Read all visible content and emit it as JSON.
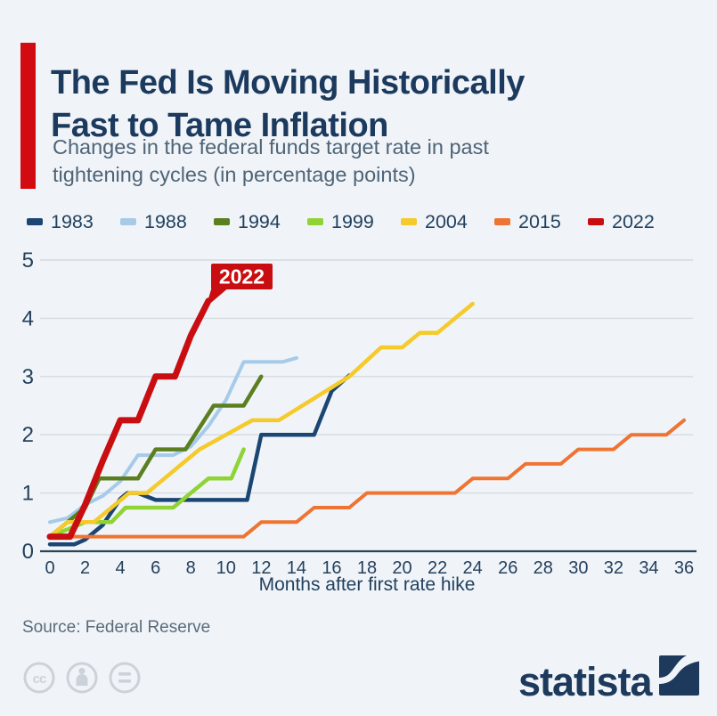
{
  "header": {
    "title_line1": "The Fed Is Moving Historically",
    "title_line2": "Fast to Tame Inflation",
    "subtitle_line1": "Changes in the federal funds target rate in past",
    "subtitle_line2": "tightening cycles (in percentage points)",
    "accent_color": "#d20a11"
  },
  "legend": [
    {
      "label": "1983",
      "color": "#1b4673"
    },
    {
      "label": "1988",
      "color": "#a6cbe9"
    },
    {
      "label": "1994",
      "color": "#5a7e20"
    },
    {
      "label": "1999",
      "color": "#8fd334"
    },
    {
      "label": "2004",
      "color": "#f5ca2b"
    },
    {
      "label": "2015",
      "color": "#ee7433"
    },
    {
      "label": "2022",
      "color": "#c90e11"
    }
  ],
  "chart_data": {
    "type": "line",
    "xlabel": "Months after first rate hike",
    "ylabel": "",
    "xlim": [
      0,
      36
    ],
    "ylim": [
      0,
      5
    ],
    "grid": true,
    "legend_position": "top",
    "xticks": [
      0,
      2,
      4,
      6,
      8,
      10,
      12,
      14,
      16,
      18,
      20,
      22,
      24,
      26,
      28,
      30,
      32,
      34,
      36
    ],
    "yticks": [
      0,
      1,
      2,
      3,
      4,
      5
    ],
    "annotation": {
      "label": "2022",
      "color": "#c90e11",
      "text_color": "#ffffff",
      "x": 9,
      "y": 4.3
    },
    "series": [
      {
        "name": "1983",
        "color": "#1b4673",
        "stroke_width": 4.5,
        "data": [
          [
            0,
            0.12
          ],
          [
            1.4,
            0.12
          ],
          [
            2,
            0.2
          ],
          [
            3,
            0.45
          ],
          [
            4,
            0.9
          ],
          [
            4.4,
            1.0
          ],
          [
            5,
            1.0
          ],
          [
            6,
            0.88
          ],
          [
            11.2,
            0.88
          ],
          [
            12,
            2.0
          ],
          [
            15,
            2.0
          ],
          [
            16,
            2.75
          ],
          [
            17,
            3.02
          ]
        ]
      },
      {
        "name": "1988",
        "color": "#a6cbe9",
        "stroke_width": 4,
        "data": [
          [
            0,
            0.5
          ],
          [
            1,
            0.57
          ],
          [
            2,
            0.8
          ],
          [
            3,
            0.95
          ],
          [
            4,
            1.2
          ],
          [
            5,
            1.65
          ],
          [
            7,
            1.65
          ],
          [
            8,
            1.8
          ],
          [
            9,
            2.15
          ],
          [
            10,
            2.6
          ],
          [
            11,
            3.25
          ],
          [
            13.2,
            3.25
          ],
          [
            14,
            3.32
          ]
        ]
      },
      {
        "name": "1994",
        "color": "#5a7e20",
        "stroke_width": 4.5,
        "data": [
          [
            0,
            0.25
          ],
          [
            1,
            0.5
          ],
          [
            2,
            0.75
          ],
          [
            2.8,
            1.25
          ],
          [
            5,
            1.25
          ],
          [
            6,
            1.75
          ],
          [
            7.7,
            1.75
          ],
          [
            9.3,
            2.5
          ],
          [
            11,
            2.5
          ],
          [
            12,
            3.0
          ]
        ]
      },
      {
        "name": "1999",
        "color": "#8fd334",
        "stroke_width": 4.5,
        "data": [
          [
            0,
            0.25
          ],
          [
            2,
            0.5
          ],
          [
            3.5,
            0.5
          ],
          [
            4.3,
            0.75
          ],
          [
            7,
            0.75
          ],
          [
            8,
            1.0
          ],
          [
            9,
            1.25
          ],
          [
            10.3,
            1.25
          ],
          [
            11,
            1.75
          ]
        ]
      },
      {
        "name": "2004",
        "color": "#f5ca2b",
        "stroke_width": 4.5,
        "data": [
          [
            0,
            0.25
          ],
          [
            1,
            0.5
          ],
          [
            2.5,
            0.5
          ],
          [
            3.5,
            0.75
          ],
          [
            4.5,
            1.0
          ],
          [
            5.5,
            1.0
          ],
          [
            6.5,
            1.25
          ],
          [
            7.5,
            1.5
          ],
          [
            8.5,
            1.75
          ],
          [
            10,
            2.0
          ],
          [
            11.5,
            2.25
          ],
          [
            13,
            2.25
          ],
          [
            17,
            3.0
          ],
          [
            18.8,
            3.5
          ],
          [
            20,
            3.5
          ],
          [
            21,
            3.75
          ],
          [
            22,
            3.75
          ],
          [
            24,
            4.25
          ]
        ]
      },
      {
        "name": "2015",
        "color": "#ee7433",
        "stroke_width": 4,
        "data": [
          [
            0,
            0.25
          ],
          [
            11,
            0.25
          ],
          [
            12,
            0.5
          ],
          [
            14,
            0.5
          ],
          [
            15,
            0.75
          ],
          [
            17,
            0.75
          ],
          [
            18,
            1.0
          ],
          [
            23,
            1.0
          ],
          [
            24,
            1.25
          ],
          [
            26,
            1.25
          ],
          [
            27,
            1.5
          ],
          [
            29,
            1.5
          ],
          [
            30,
            1.75
          ],
          [
            32,
            1.75
          ],
          [
            33,
            2.0
          ],
          [
            35,
            2.0
          ],
          [
            36,
            2.25
          ]
        ]
      },
      {
        "name": "2022",
        "color": "#c90e11",
        "stroke_width": 7,
        "data": [
          [
            0,
            0.25
          ],
          [
            1.15,
            0.25
          ],
          [
            2,
            0.8
          ],
          [
            3,
            1.55
          ],
          [
            4,
            2.25
          ],
          [
            5,
            2.25
          ],
          [
            6,
            3.0
          ],
          [
            7.1,
            3.0
          ],
          [
            8,
            3.7
          ],
          [
            9,
            4.3
          ]
        ]
      }
    ]
  },
  "footer": {
    "source": "Source: Federal Reserve",
    "brand": "statista",
    "icons": [
      {
        "name": "cc-license-icon",
        "glyph": "cc"
      },
      {
        "name": "cc-attribution-icon",
        "glyph": "person"
      },
      {
        "name": "cc-no-derivatives-icon",
        "glyph": "equals"
      }
    ],
    "icon_color": "#ccd2d9",
    "brand_color": "#1d3a5c"
  }
}
